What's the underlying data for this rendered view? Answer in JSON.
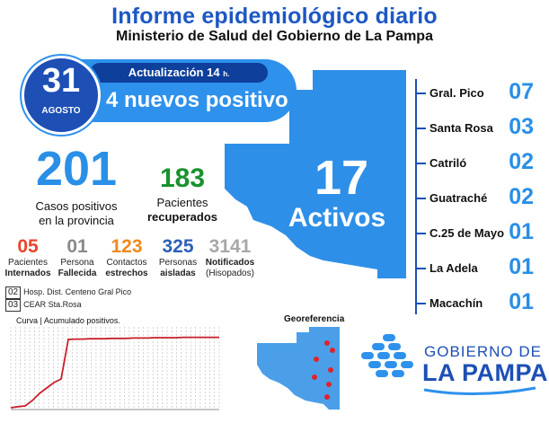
{
  "header": {
    "title": "Informe epidemiológico diario",
    "subtitle": "Ministerio de Salud del Gobierno de La Pampa"
  },
  "update": {
    "label": "Actualización 14",
    "hour_suffix": "h.",
    "day": "31",
    "month": "AGOSTO",
    "new_positive": "4 nuevos positivo"
  },
  "totals": {
    "positive_cases": {
      "value": "201",
      "label_line1": "Casos positivos",
      "label_line2": "en la provincia"
    },
    "recovered": {
      "value": "183",
      "label_line1": "Pacientes",
      "label_line2": "recuperados"
    }
  },
  "stats": [
    {
      "value": "05",
      "line1": "Pacientes",
      "line2": "Internados",
      "color": "#e8452c"
    },
    {
      "value": "01",
      "line1": "Persona",
      "line2": "Fallecida",
      "color": "#8a8a8a"
    },
    {
      "value": "123",
      "line1": "Contactos",
      "line2": "estrechos",
      "color": "#ee8a1f"
    },
    {
      "value": "325",
      "line1": "Personas",
      "line2": "aisladas",
      "color": "#2d5fb8"
    },
    {
      "value": "3141",
      "line1": "Notificados",
      "line2": "(Hisopados)",
      "color": "#a8a8a8"
    }
  ],
  "hospitals": [
    {
      "count": "02",
      "name": "Hosp. Dist. Centeno Gral Pico"
    },
    {
      "count": "03",
      "name": "CEAR Sta.Rosa"
    }
  ],
  "active": {
    "value": "17",
    "label": "Activos"
  },
  "cities": [
    {
      "name": "Gral. Pico",
      "count": "07"
    },
    {
      "name": "Santa Rosa",
      "count": "03"
    },
    {
      "name": "Catriló",
      "count": "02"
    },
    {
      "name": "Guatraché",
      "count": "02"
    },
    {
      "name": "C.25 de Mayo",
      "count": "01"
    },
    {
      "name": "La Adela",
      "count": "01"
    },
    {
      "name": "Macachín",
      "count": "01"
    }
  ],
  "curve": {
    "title": "Curva | Acumulado positivos."
  },
  "geo": {
    "title": "Georeferencia"
  },
  "logo": {
    "line1": "GOBIERNO DE",
    "line2": "LA PAMPA"
  },
  "colors": {
    "primary_blue": "#1d57c4",
    "light_blue": "#2e91ec",
    "dark_blue": "#0d3f9b",
    "green": "#19922f",
    "curve_red": "#c8202a"
  },
  "chart_data": {
    "type": "line",
    "title": "Curva | Acumulado positivos.",
    "series": [
      {
        "values": [
          5,
          8,
          10,
          25,
          45,
          60,
          75,
          85,
          195,
          196,
          196,
          197,
          197,
          197,
          198,
          198,
          198,
          199,
          199,
          199,
          200,
          200,
          200,
          200,
          201,
          201,
          201,
          201,
          201,
          201
        ]
      }
    ],
    "ylim": [
      0,
      230
    ],
    "grid": "vertical"
  }
}
